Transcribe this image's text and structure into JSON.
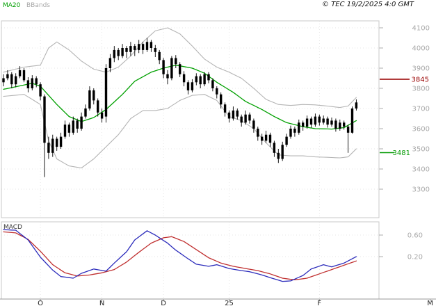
{
  "header": {
    "ma_label": "MA20",
    "bbands_label": "BBands",
    "copyright": "© TEC 19/2/2025 4:0 GMT"
  },
  "colors": {
    "ma20": "#00a000",
    "bbands": "#b4b4b4",
    "candle": "#000000",
    "macd_fast": "#2b2bbb",
    "macd_slow": "#c03030",
    "resistance": "#990000",
    "support": "#009900",
    "axis_text": "#a8a8a8",
    "month_text": "#222222",
    "grid": "#dcdcdc",
    "frame": "#c8c8c8",
    "axis_line": "#999999",
    "macd_label_color": "#333333"
  },
  "chart_data": {
    "type": "candlestick+macd",
    "title": "",
    "price_panel": {
      "ylim": [
        3250,
        4140
      ],
      "yticks": [
        4100,
        4000,
        3900,
        3800,
        3700,
        3600,
        3500,
        3400,
        3300
      ],
      "levels": [
        {
          "value": 3845,
          "label": "3845",
          "role": "resistance"
        },
        {
          "value": 3481,
          "label": "3481",
          "role": "support"
        }
      ],
      "candles_ohlc": [
        [
          3830,
          3870,
          3810,
          3850
        ],
        [
          3850,
          3890,
          3840,
          3870
        ],
        [
          3870,
          3880,
          3800,
          3820
        ],
        [
          3820,
          3875,
          3805,
          3860
        ],
        [
          3860,
          3910,
          3850,
          3890
        ],
        [
          3890,
          3900,
          3830,
          3840
        ],
        [
          3840,
          3855,
          3780,
          3800
        ],
        [
          3800,
          3865,
          3790,
          3850
        ],
        [
          3850,
          3860,
          3805,
          3820
        ],
        [
          3820,
          3830,
          3740,
          3760
        ],
        [
          3760,
          3770,
          3360,
          3530
        ],
        [
          3530,
          3560,
          3450,
          3480
        ],
        [
          3480,
          3570,
          3460,
          3550
        ],
        [
          3550,
          3560,
          3490,
          3510
        ],
        [
          3510,
          3580,
          3500,
          3560
        ],
        [
          3560,
          3640,
          3550,
          3620
        ],
        [
          3620,
          3630,
          3560,
          3580
        ],
        [
          3580,
          3660,
          3570,
          3640
        ],
        [
          3640,
          3650,
          3580,
          3600
        ],
        [
          3600,
          3680,
          3590,
          3660
        ],
        [
          3660,
          3720,
          3650,
          3700
        ],
        [
          3700,
          3810,
          3690,
          3790
        ],
        [
          3790,
          3800,
          3720,
          3740
        ],
        [
          3740,
          3750,
          3660,
          3680
        ],
        [
          3680,
          3700,
          3630,
          3650
        ],
        [
          3660,
          3920,
          3630,
          3900
        ],
        [
          3900,
          3970,
          3880,
          3950
        ],
        [
          3950,
          4010,
          3930,
          3990
        ],
        [
          3990,
          4000,
          3940,
          3960
        ],
        [
          3960,
          4020,
          3950,
          4000
        ],
        [
          4000,
          4010,
          3950,
          3980
        ],
        [
          3980,
          4030,
          3960,
          4010
        ],
        [
          4010,
          4020,
          3960,
          3990
        ],
        [
          3990,
          4040,
          3975,
          4020
        ],
        [
          4020,
          4030,
          3970,
          3990
        ],
        [
          3990,
          4050,
          3980,
          4030
        ],
        [
          4030,
          4040,
          3980,
          4000
        ],
        [
          4000,
          4015,
          3955,
          3980
        ],
        [
          3980,
          3990,
          3920,
          3940
        ],
        [
          3940,
          3950,
          3850,
          3870
        ],
        [
          3870,
          3890,
          3820,
          3850
        ],
        [
          3850,
          3960,
          3840,
          3950
        ],
        [
          3950,
          3965,
          3900,
          3920
        ],
        [
          3920,
          3930,
          3855,
          3870
        ],
        [
          3870,
          3885,
          3810,
          3830
        ],
        [
          3830,
          3840,
          3770,
          3790
        ],
        [
          3790,
          3845,
          3780,
          3830
        ],
        [
          3830,
          3875,
          3815,
          3860
        ],
        [
          3860,
          3870,
          3800,
          3820
        ],
        [
          3820,
          3880,
          3810,
          3870
        ],
        [
          3870,
          3880,
          3825,
          3840
        ],
        [
          3840,
          3850,
          3785,
          3800
        ],
        [
          3800,
          3810,
          3750,
          3770
        ],
        [
          3770,
          3780,
          3700,
          3720
        ],
        [
          3720,
          3730,
          3660,
          3680
        ],
        [
          3680,
          3690,
          3630,
          3650
        ],
        [
          3650,
          3710,
          3640,
          3690
        ],
        [
          3690,
          3700,
          3645,
          3660
        ],
        [
          3660,
          3670,
          3610,
          3630
        ],
        [
          3630,
          3690,
          3620,
          3670
        ],
        [
          3670,
          3680,
          3625,
          3640
        ],
        [
          3640,
          3650,
          3580,
          3600
        ],
        [
          3600,
          3610,
          3540,
          3560
        ],
        [
          3560,
          3575,
          3520,
          3540
        ],
        [
          3540,
          3590,
          3530,
          3570
        ],
        [
          3570,
          3580,
          3510,
          3530
        ],
        [
          3530,
          3540,
          3460,
          3480
        ],
        [
          3480,
          3500,
          3430,
          3450
        ],
        [
          3450,
          3535,
          3440,
          3520
        ],
        [
          3520,
          3575,
          3510,
          3560
        ],
        [
          3560,
          3615,
          3550,
          3600
        ],
        [
          3600,
          3610,
          3560,
          3580
        ],
        [
          3580,
          3645,
          3570,
          3630
        ],
        [
          3630,
          3640,
          3590,
          3610
        ],
        [
          3610,
          3665,
          3600,
          3650
        ],
        [
          3650,
          3660,
          3605,
          3620
        ],
        [
          3620,
          3675,
          3610,
          3660
        ],
        [
          3660,
          3670,
          3615,
          3630
        ],
        [
          3630,
          3665,
          3620,
          3650
        ],
        [
          3650,
          3660,
          3605,
          3620
        ],
        [
          3620,
          3655,
          3610,
          3640
        ],
        [
          3640,
          3650,
          3585,
          3600
        ],
        [
          3600,
          3645,
          3590,
          3630
        ],
        [
          3630,
          3640,
          3595,
          3610
        ],
        [
          3610,
          3620,
          3480,
          3580
        ],
        [
          3580,
          3710,
          3575,
          3700
        ],
        [
          3700,
          3745,
          3690,
          3730
        ]
      ],
      "ma20_keypoints": [
        [
          0,
          3795
        ],
        [
          7,
          3825
        ],
        [
          9,
          3810
        ],
        [
          13,
          3720
        ],
        [
          16,
          3660
        ],
        [
          19,
          3635
        ],
        [
          22,
          3655
        ],
        [
          25,
          3695
        ],
        [
          29,
          3770
        ],
        [
          32,
          3835
        ],
        [
          36,
          3880
        ],
        [
          39,
          3900
        ],
        [
          42,
          3915
        ],
        [
          46,
          3900
        ],
        [
          49,
          3875
        ],
        [
          52,
          3830
        ],
        [
          56,
          3780
        ],
        [
          59,
          3735
        ],
        [
          63,
          3695
        ],
        [
          66,
          3660
        ],
        [
          69,
          3630
        ],
        [
          73,
          3610
        ],
        [
          76,
          3600
        ],
        [
          80,
          3598
        ],
        [
          83,
          3605
        ],
        [
          86,
          3640
        ]
      ],
      "bb_upper_keypoints": [
        [
          0,
          3880
        ],
        [
          5,
          3905
        ],
        [
          9,
          3915
        ],
        [
          11,
          4000
        ],
        [
          13,
          4030
        ],
        [
          16,
          3990
        ],
        [
          19,
          3935
        ],
        [
          22,
          3895
        ],
        [
          25,
          3880
        ],
        [
          28,
          3905
        ],
        [
          31,
          3960
        ],
        [
          34,
          4030
        ],
        [
          37,
          4085
        ],
        [
          40,
          4100
        ],
        [
          43,
          4070
        ],
        [
          46,
          4010
        ],
        [
          49,
          3945
        ],
        [
          52,
          3905
        ],
        [
          55,
          3880
        ],
        [
          58,
          3850
        ],
        [
          61,
          3800
        ],
        [
          64,
          3745
        ],
        [
          67,
          3720
        ],
        [
          70,
          3715
        ],
        [
          73,
          3720
        ],
        [
          76,
          3718
        ],
        [
          79,
          3712
        ],
        [
          82,
          3705
        ],
        [
          84,
          3712
        ],
        [
          86,
          3755
        ]
      ],
      "bb_lower_keypoints": [
        [
          0,
          3760
        ],
        [
          5,
          3770
        ],
        [
          9,
          3720
        ],
        [
          11,
          3540
        ],
        [
          13,
          3450
        ],
        [
          16,
          3415
        ],
        [
          19,
          3405
        ],
        [
          22,
          3450
        ],
        [
          25,
          3510
        ],
        [
          28,
          3570
        ],
        [
          31,
          3650
        ],
        [
          34,
          3690
        ],
        [
          37,
          3690
        ],
        [
          40,
          3700
        ],
        [
          43,
          3740
        ],
        [
          46,
          3765
        ],
        [
          49,
          3770
        ],
        [
          52,
          3740
        ],
        [
          55,
          3660
        ],
        [
          58,
          3640
        ],
        [
          61,
          3600
        ],
        [
          64,
          3530
        ],
        [
          67,
          3470
        ],
        [
          70,
          3465
        ],
        [
          73,
          3465
        ],
        [
          76,
          3460
        ],
        [
          79,
          3458
        ],
        [
          82,
          3455
        ],
        [
          84,
          3460
        ],
        [
          86,
          3500
        ]
      ]
    },
    "macd_panel": {
      "label": "MACD",
      "ylim": [
        -0.35,
        0.82
      ],
      "yticks": [
        {
          "value": 0.6,
          "label": "0.60"
        },
        {
          "value": 0.2,
          "label": "0.20"
        }
      ],
      "fast_keypoints": [
        [
          0,
          0.7
        ],
        [
          3,
          0.69
        ],
        [
          6,
          0.51
        ],
        [
          9,
          0.19
        ],
        [
          12,
          -0.05
        ],
        [
          14,
          -0.17
        ],
        [
          17,
          -0.2
        ],
        [
          19,
          -0.11
        ],
        [
          22,
          -0.03
        ],
        [
          25,
          -0.07
        ],
        [
          27,
          0.08
        ],
        [
          30,
          0.29
        ],
        [
          32,
          0.51
        ],
        [
          35,
          0.68
        ],
        [
          37,
          0.6
        ],
        [
          40,
          0.45
        ],
        [
          42,
          0.32
        ],
        [
          45,
          0.16
        ],
        [
          47,
          0.06
        ],
        [
          50,
          0.02
        ],
        [
          52,
          0.05
        ],
        [
          55,
          -0.02
        ],
        [
          58,
          -0.06
        ],
        [
          60,
          -0.08
        ],
        [
          63,
          -0.14
        ],
        [
          65,
          -0.19
        ],
        [
          68,
          -0.26
        ],
        [
          70,
          -0.25
        ],
        [
          73,
          -0.15
        ],
        [
          75,
          -0.03
        ],
        [
          78,
          0.05
        ],
        [
          80,
          0.01
        ],
        [
          83,
          0.08
        ],
        [
          86,
          0.2
        ]
      ],
      "slow_keypoints": [
        [
          0,
          0.66
        ],
        [
          3,
          0.64
        ],
        [
          6,
          0.52
        ],
        [
          9,
          0.3
        ],
        [
          12,
          0.05
        ],
        [
          15,
          -0.1
        ],
        [
          18,
          -0.16
        ],
        [
          21,
          -0.14
        ],
        [
          24,
          -0.1
        ],
        [
          27,
          -0.04
        ],
        [
          30,
          0.1
        ],
        [
          33,
          0.28
        ],
        [
          36,
          0.45
        ],
        [
          39,
          0.55
        ],
        [
          41,
          0.57
        ],
        [
          44,
          0.48
        ],
        [
          47,
          0.33
        ],
        [
          50,
          0.18
        ],
        [
          53,
          0.08
        ],
        [
          56,
          0.02
        ],
        [
          59,
          -0.02
        ],
        [
          62,
          -0.06
        ],
        [
          65,
          -0.12
        ],
        [
          68,
          -0.2
        ],
        [
          71,
          -0.23
        ],
        [
          74,
          -0.2
        ],
        [
          77,
          -0.12
        ],
        [
          80,
          -0.04
        ],
        [
          83,
          0.04
        ],
        [
          86,
          0.12
        ]
      ]
    },
    "x_axis": {
      "month_ticks": [
        {
          "label": "O",
          "i": 9
        },
        {
          "label": "N",
          "i": 24
        },
        {
          "label": "D",
          "i": 39
        },
        {
          "label": "25",
          "i": 55
        },
        {
          "label": "F",
          "i": 77
        },
        {
          "label": "M",
          "i": 104
        }
      ]
    }
  }
}
